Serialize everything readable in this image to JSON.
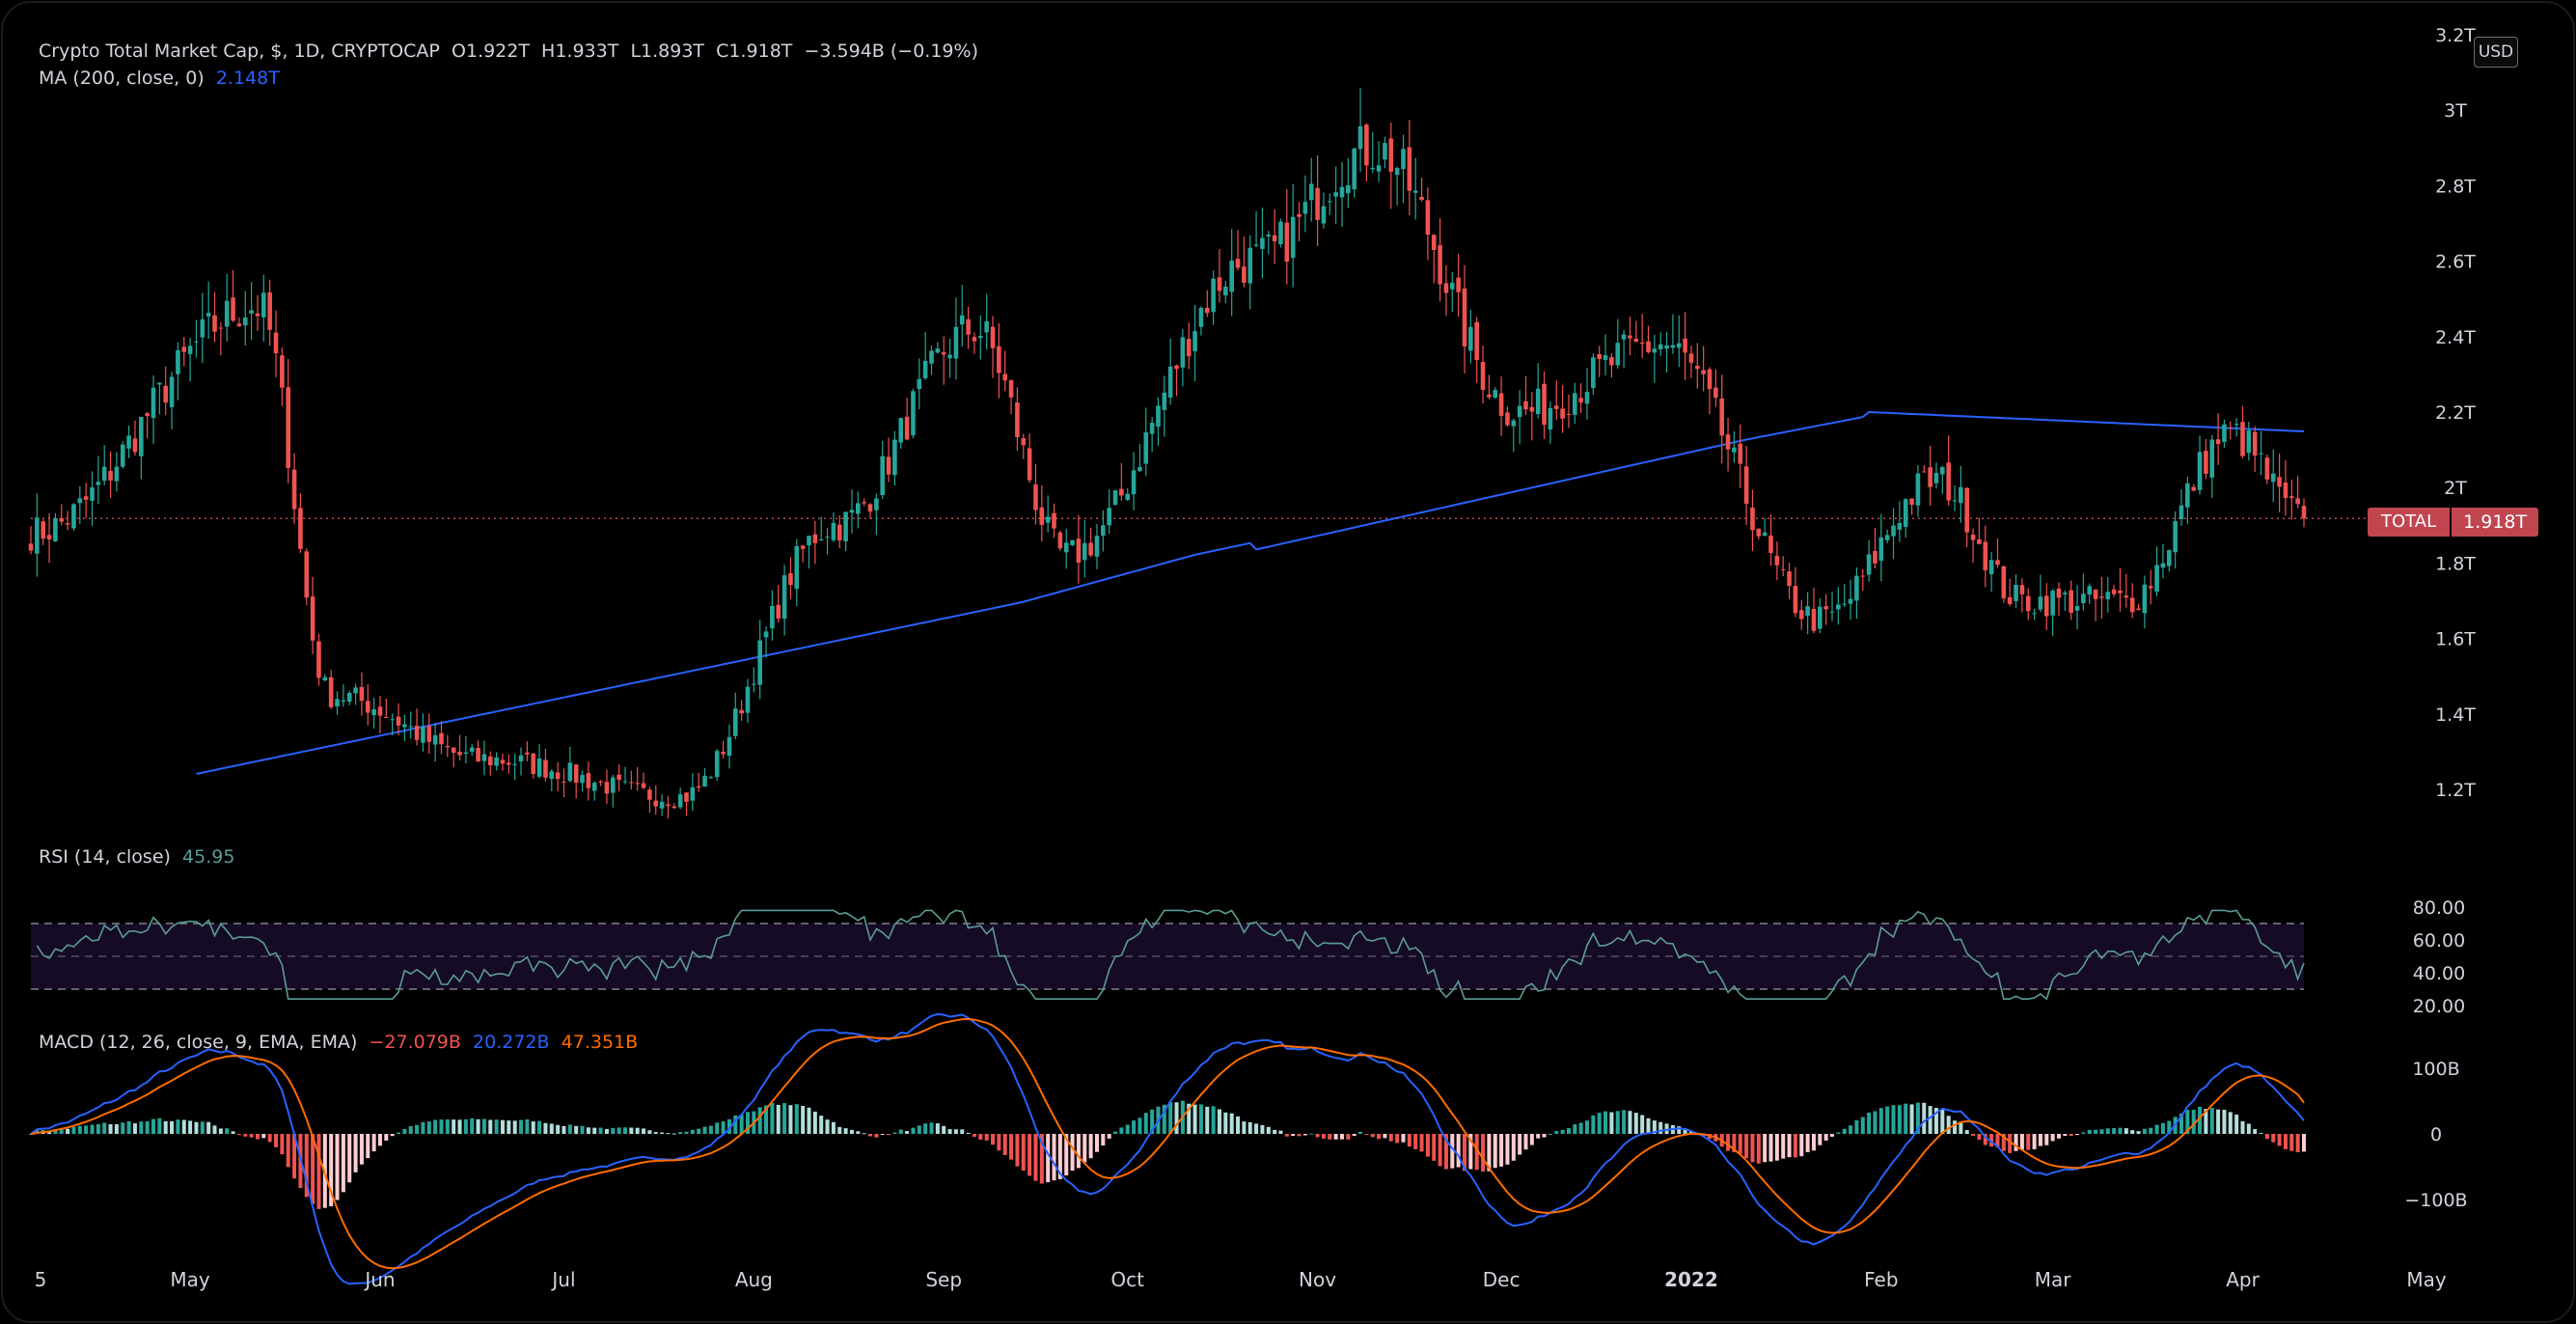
{
  "legend": {
    "title": "Crypto Total Market Cap, $, 1D, CRYPTOCAP",
    "open": "O1.922T",
    "high": "H1.933T",
    "low": "L1.893T",
    "close": "C1.918T",
    "change": "−3.594B (−0.19%)",
    "ma_label": "MA (200, close, 0)",
    "ma_value": "2.148T",
    "rsi_label": "RSI (14, close)",
    "rsi_value": "45.95",
    "macd_label": "MACD (12, 26, close, 9, EMA, EMA)",
    "macd_hist": "−27.079B",
    "macd_line": "20.272B",
    "macd_signal": "47.351B"
  },
  "currency_button": "USD",
  "price_tag": {
    "name": "TOTAL",
    "value": "1.918T"
  },
  "colors": {
    "up": "#26a69a",
    "down": "#ef5350",
    "ma": "#2962ff",
    "rsi": "#5b9c95",
    "macd": "#2962ff",
    "signal": "#ff6d00",
    "rsi_band": "#1a0f2b"
  },
  "chart_data": [
    {
      "type": "candlestick",
      "title": "Crypto Total Market Cap, $, 1D, CRYPTOCAP",
      "y_unit": "T (USD)",
      "y_ticks": [
        "1.2T",
        "1.4T",
        "1.6T",
        "1.8T",
        "2T",
        "2.2T",
        "2.4T",
        "2.6T",
        "2.8T",
        "3T",
        "3.2T"
      ],
      "ylim": [
        1.1,
        3.2
      ],
      "x_ticks": [
        "5",
        "May",
        "Jun",
        "Jul",
        "Aug",
        "Sep",
        "Oct",
        "Nov",
        "Dec",
        "2022",
        "Feb",
        "Mar",
        "Apr",
        "May"
      ],
      "key_points": {
        "dates": [
          "Apr 5",
          "May 12",
          "May 24",
          "Jun 18",
          "Jul 20",
          "Aug 14",
          "Sep 6",
          "Sep 21",
          "Oct 21",
          "Nov 10",
          "Dec 4",
          "Dec 27",
          "Jan 22",
          "Feb 10",
          "Feb 24",
          "Mar 13",
          "Mar 30",
          "Apr 11"
        ],
        "close_T": [
          1.88,
          2.48,
          1.45,
          1.28,
          1.18,
          1.9,
          2.42,
          1.82,
          2.6,
          2.9,
          2.2,
          2.38,
          1.65,
          2.02,
          1.7,
          1.7,
          2.14,
          1.918
        ]
      },
      "last_close": "1.918T"
    },
    {
      "type": "line",
      "name": "MA (200, close, 0)",
      "last_value": "2.148T"
    },
    {
      "type": "line",
      "name": "RSI (14, close)",
      "y_ticks": [
        "20.00",
        "40.00",
        "60.00",
        "80.00"
      ],
      "ylim": [
        18,
        82
      ],
      "bands": [
        30,
        50,
        70
      ],
      "last_value": 45.95
    },
    {
      "type": "bar",
      "name": "MACD (12, 26, close, 9, EMA, EMA)",
      "y_ticks": [
        "−100B",
        "0",
        "100B"
      ],
      "ylim": [
        -155,
        165
      ],
      "series": [
        {
          "name": "histogram",
          "last_value": "−27.079B"
        },
        {
          "name": "macd",
          "last_value": "20.272B"
        },
        {
          "name": "signal",
          "last_value": "47.351B"
        }
      ]
    }
  ]
}
